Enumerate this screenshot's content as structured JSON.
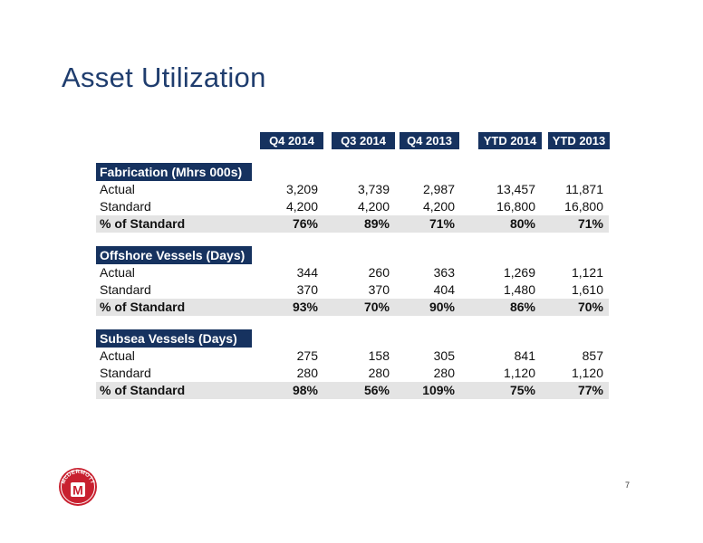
{
  "title": "Asset Utilization",
  "columns": [
    "Q4 2014",
    "Q3 2014",
    "Q4 2013",
    "YTD 2014",
    "YTD 2013"
  ],
  "sections": [
    {
      "title": "Fabrication (Mhrs 000s)",
      "rows": [
        {
          "label": "Actual",
          "values": [
            "3,209",
            "3,739",
            "2,987",
            "13,457",
            "11,871"
          ]
        },
        {
          "label": "Standard",
          "values": [
            "4,200",
            "4,200",
            "4,200",
            "16,800",
            "16,800"
          ]
        },
        {
          "label": "% of Standard",
          "values": [
            "76%",
            "89%",
            "71%",
            "80%",
            "71%"
          ]
        }
      ]
    },
    {
      "title": "Offshore Vessels (Days)",
      "rows": [
        {
          "label": "Actual",
          "values": [
            "344",
            "260",
            "363",
            "1,269",
            "1,121"
          ]
        },
        {
          "label": "Standard",
          "values": [
            "370",
            "370",
            "404",
            "1,480",
            "1,610"
          ]
        },
        {
          "label": "% of Standard",
          "values": [
            "93%",
            "70%",
            "90%",
            "86%",
            "70%"
          ]
        }
      ]
    },
    {
      "title": "Subsea Vessels (Days)",
      "rows": [
        {
          "label": "Actual",
          "values": [
            "275",
            "158",
            "305",
            "841",
            "857"
          ]
        },
        {
          "label": "Standard",
          "values": [
            "280",
            "280",
            "280",
            "1,120",
            "1,120"
          ]
        },
        {
          "label": "% of Standard",
          "values": [
            "98%",
            "56%",
            "109%",
            "75%",
            "77%"
          ]
        }
      ]
    }
  ],
  "logo_text": "McDERMOTT",
  "logo_letter": "M",
  "page_number": "7",
  "colors": {
    "header_bg": "#16325f",
    "title": "#1f3d6e",
    "logo_red": "#c8202f",
    "pct_row_bg": "#e4e4e4"
  }
}
